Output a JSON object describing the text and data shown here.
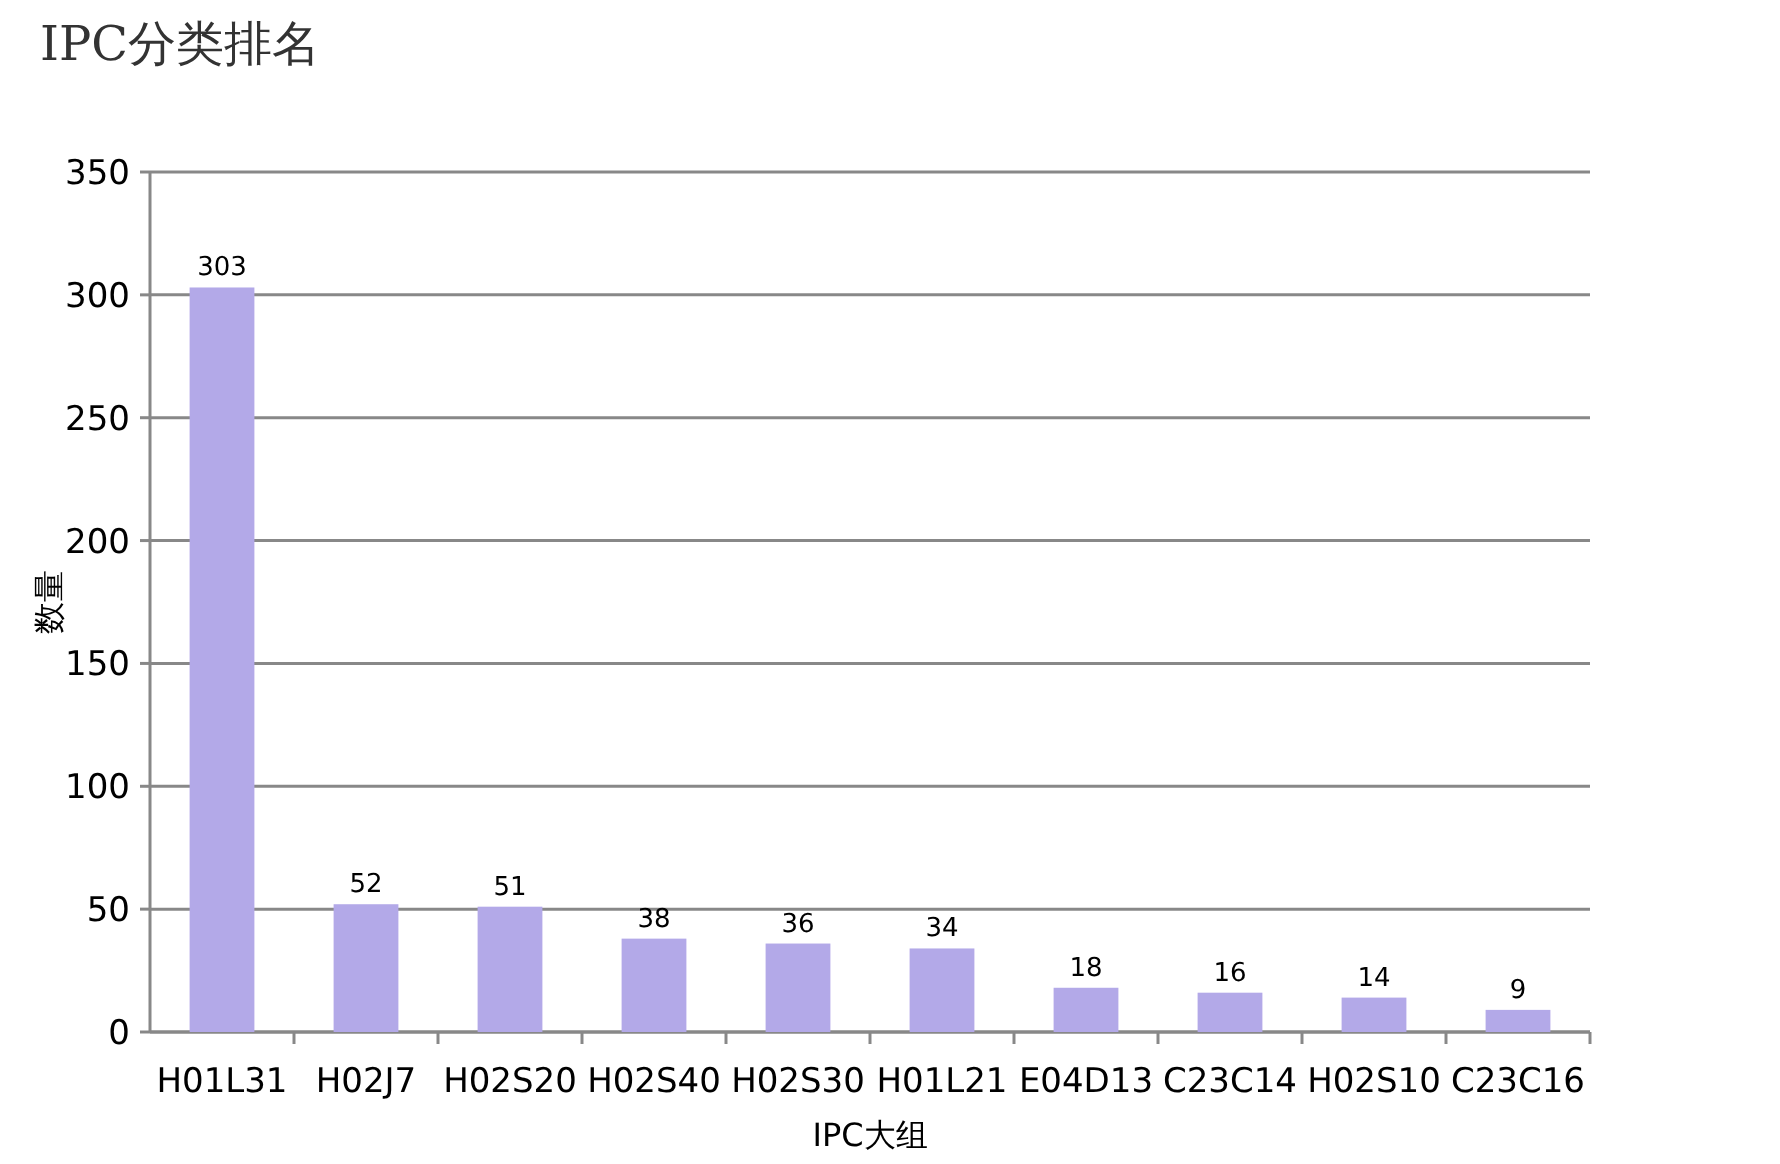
{
  "chart_data": {
    "type": "bar",
    "title": "IPC分类排名",
    "xlabel": "IPC大组",
    "ylabel": "数量",
    "categories": [
      "H01L31",
      "H02J7",
      "H02S20",
      "H02S40",
      "H02S30",
      "H01L21",
      "E04D13",
      "C23C14",
      "H02S10",
      "C23C16"
    ],
    "values": [
      303,
      52,
      51,
      38,
      36,
      34,
      18,
      16,
      14,
      9
    ],
    "color": "#b3a9e8",
    "ylim": [
      0,
      350
    ],
    "yticks": [
      0,
      50,
      100,
      150,
      200,
      250,
      300,
      350
    ],
    "grid": "y",
    "data_labels": true
  }
}
